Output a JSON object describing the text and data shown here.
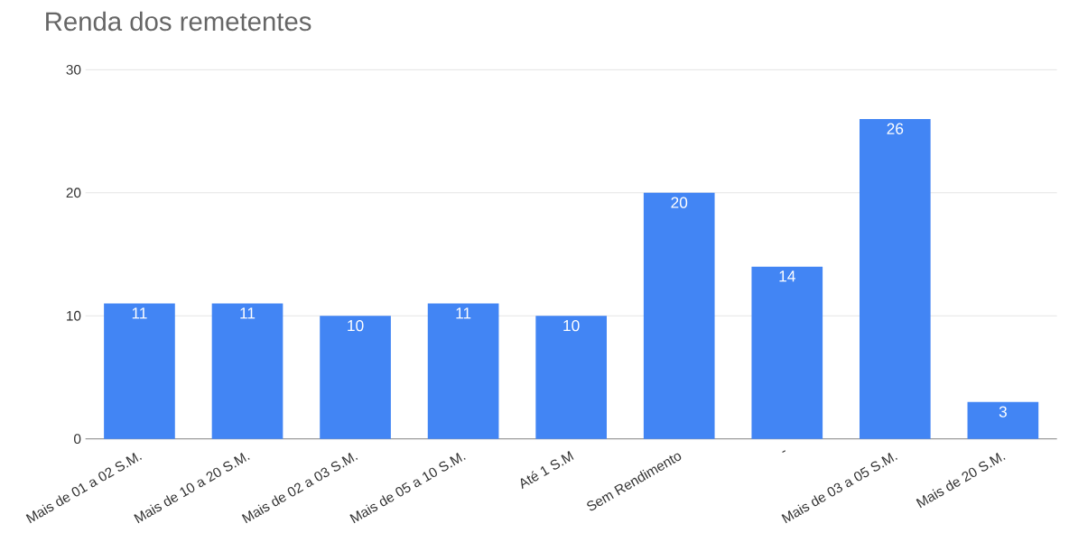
{
  "chart_data": {
    "type": "bar",
    "title": "Renda dos remetentes",
    "categories": [
      "Mais de 01 a 02 S.M.",
      "Mais de 10 a 20 S.M.",
      "Mais de 02 a 03 S.M.",
      "Mais de 05 a 10 S.M.",
      "Até 1 S.M",
      "Sem Rendimento",
      "-",
      "Mais de 03 a 05 S.M.",
      "Mais de 20 S.M."
    ],
    "values": [
      11,
      11,
      10,
      11,
      10,
      20,
      14,
      26,
      3
    ],
    "color": "#4285f4",
    "ylim": [
      0,
      30
    ],
    "yticks": [
      0,
      10,
      20,
      30
    ],
    "grid": "y",
    "data_labels": true
  }
}
